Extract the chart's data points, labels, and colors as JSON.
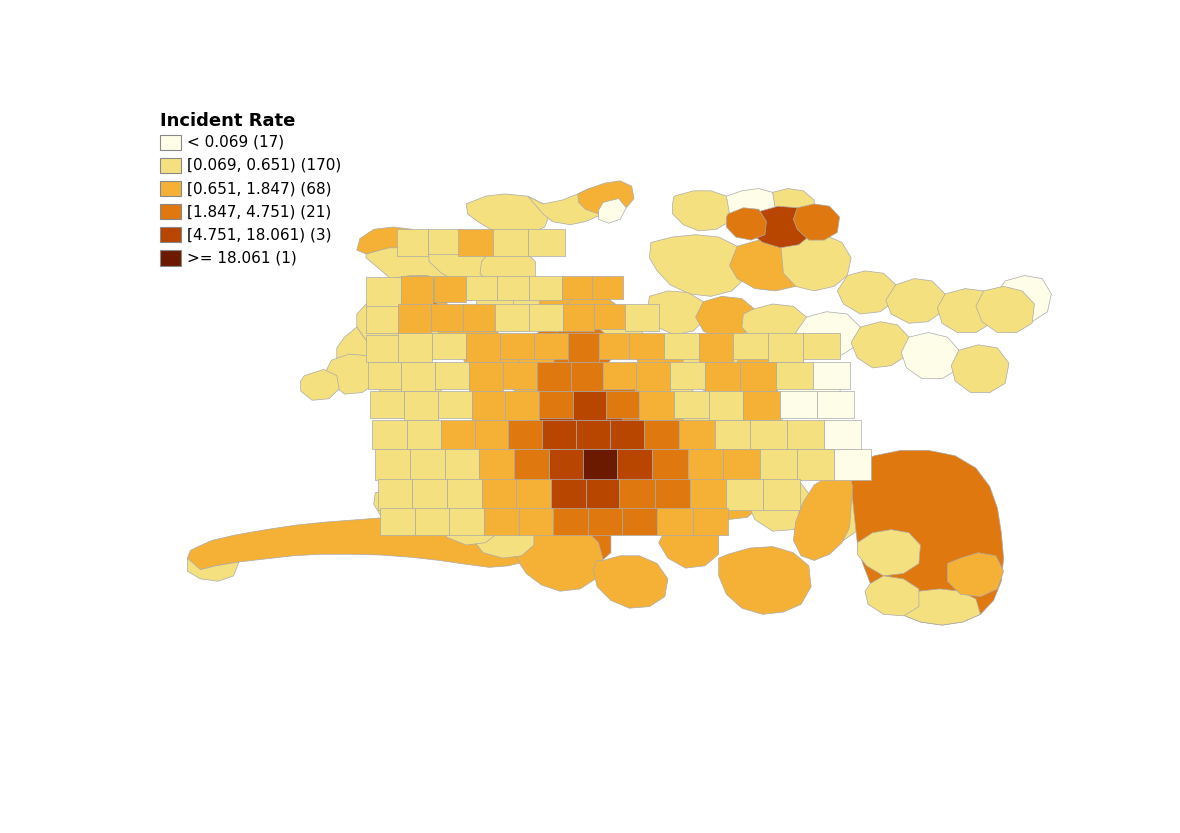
{
  "title": "Incident Rate",
  "legend_entries": [
    {
      "label": "< 0.069 (17)",
      "color": "#FEFEE8"
    },
    {
      "label": "[0.069, 0.651) (170)",
      "color": "#F5E080"
    },
    {
      "label": "[0.651, 1.847) (68)",
      "color": "#F5B135"
    },
    {
      "label": "[1.847, 4.751) (21)",
      "color": "#E07810"
    },
    {
      "label": "[4.751, 18.061) (3)",
      "color": "#B84500"
    },
    {
      "label": ">= 18.061 (1)",
      "color": "#6B1A00"
    }
  ],
  "background_color": "#FFFFFF",
  "title_fontsize": 13,
  "legend_fontsize": 11,
  "edge_color": "#AAAAAA",
  "edge_lw": 0.5
}
